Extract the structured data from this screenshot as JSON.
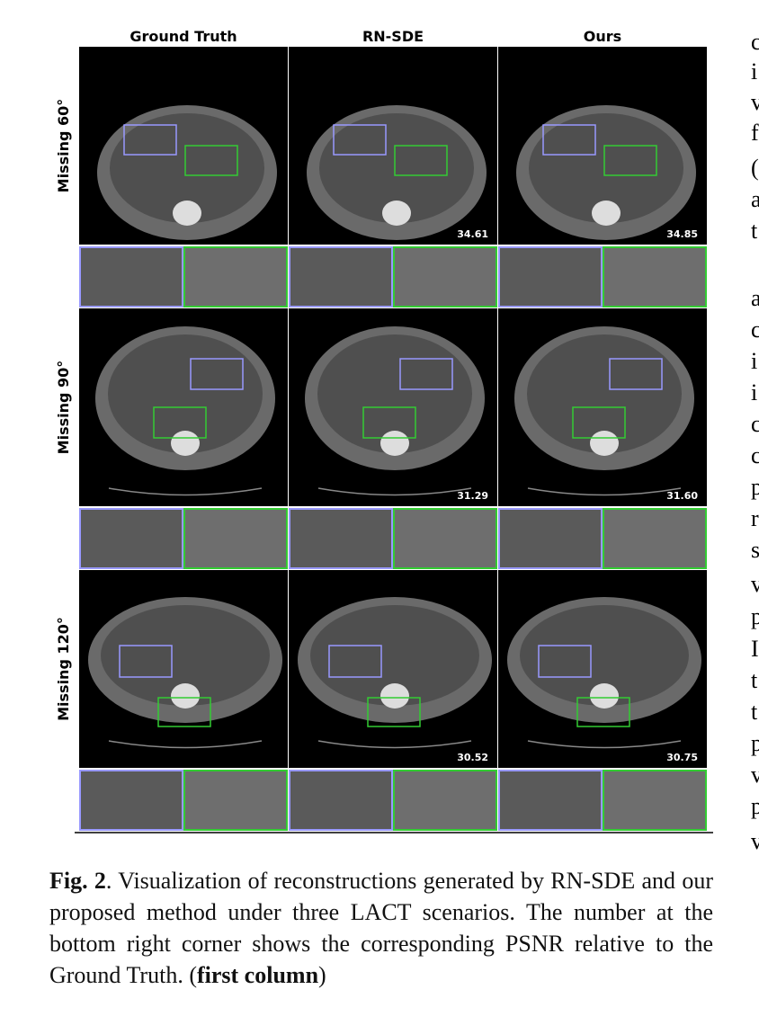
{
  "figure": {
    "columns": [
      "Ground Truth",
      "RN-SDE",
      "Ours"
    ],
    "rows": [
      {
        "label": "Missing 60°",
        "psnr": [
          "34.61",
          "34.85"
        ]
      },
      {
        "label": "Missing 90°",
        "psnr": [
          "31.29",
          "31.60"
        ]
      },
      {
        "label": "Missing 120°",
        "psnr": [
          "30.52",
          "30.75"
        ]
      }
    ]
  },
  "caption": {
    "label": "Fig. 2",
    "text": ".  Visualization of reconstructions generated by RN-SDE and our proposed method under three LACT scenarios. The number at the bottom right corner shows the corresponding PSNR relative to the Ground Truth. (",
    "bold": "first column",
    "close": ")"
  },
  "margin_text": [
    "c",
    "i",
    "v",
    "f",
    "(",
    "a",
    "t",
    "a",
    "c",
    "i",
    "i",
    "c",
    "c",
    "p",
    "r",
    "s",
    "v",
    "p",
    "I",
    "t",
    "t",
    "p",
    "v",
    "p",
    "v"
  ]
}
